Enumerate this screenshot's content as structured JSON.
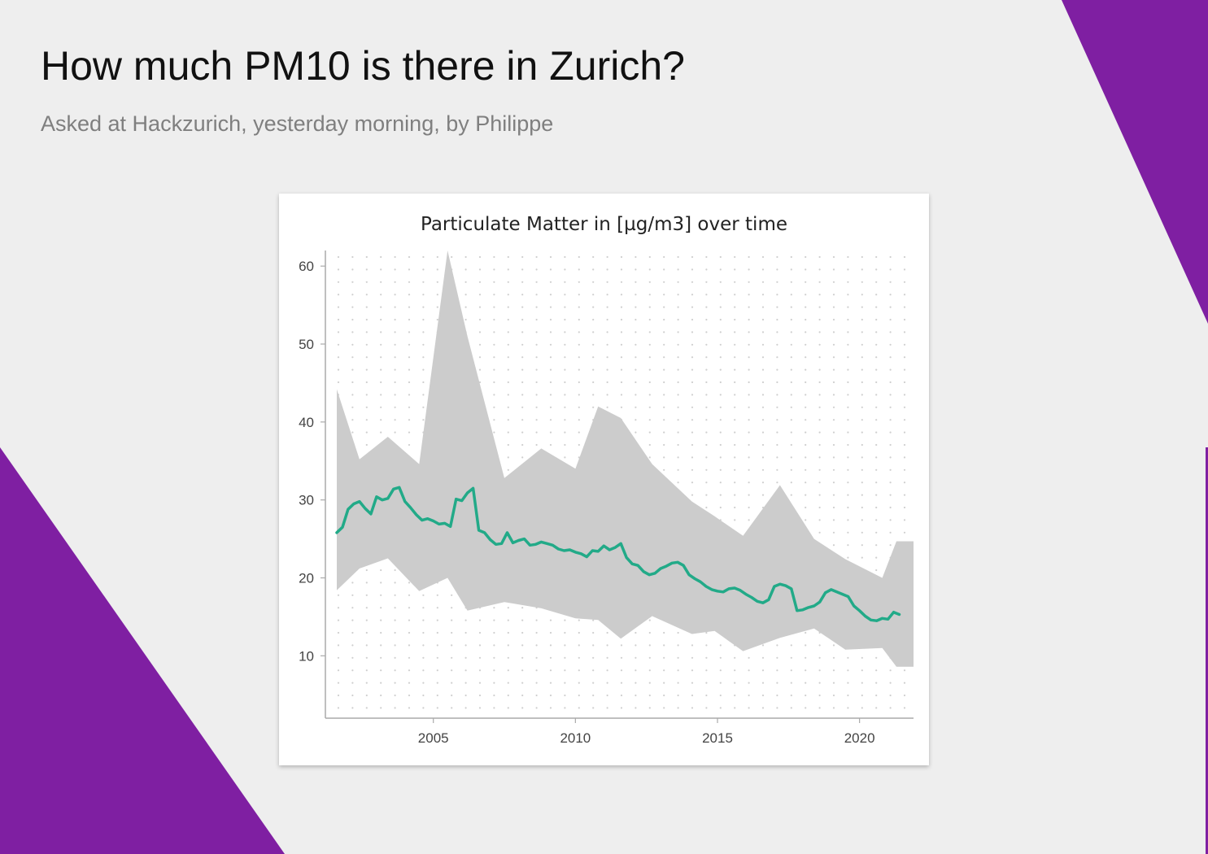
{
  "slide": {
    "title": "How much PM10 is there in Zurich?",
    "subtitle": "Asked at Hackzurich, yesterday morning, by Philippe",
    "background_color": "#eeeeee",
    "accent_color": "#7f1fa2"
  },
  "chart_data": {
    "type": "line",
    "title": "Particulate Matter in [µg/m3] over time",
    "xlabel": "",
    "ylabel": "",
    "xlim": [
      2001.2,
      2021.9
    ],
    "ylim": [
      2,
      62
    ],
    "x_ticks": [
      2005,
      2010,
      2015,
      2020
    ],
    "y_ticks": [
      10,
      20,
      30,
      40,
      50,
      60
    ],
    "grid": "dotted",
    "legend": "none",
    "line_color": "#22aa88",
    "band_color": "#cccccc",
    "series": [
      {
        "kind": "band",
        "x": [
          2001.6,
          2002.4,
          2003.4,
          2004.5,
          2005.5,
          2006.2,
          2007.5,
          2008.8,
          2010.0,
          2010.8,
          2011.6,
          2012.7,
          2014.1,
          2014.9,
          2015.9,
          2017.2,
          2018.4,
          2019.5,
          2020.8,
          2021.3,
          2021.9
        ],
        "lower": [
          18.4,
          21.2,
          22.5,
          18.3,
          20.0,
          15.8,
          16.9,
          16.1,
          14.8,
          14.6,
          12.2,
          15.1,
          12.8,
          13.2,
          10.6,
          12.3,
          13.5,
          10.8,
          11.0,
          8.6,
          8.6
        ],
        "upper": [
          44.2,
          35.2,
          38.1,
          34.6,
          62.0,
          51.0,
          32.8,
          36.6,
          34.0,
          42.0,
          40.5,
          34.6,
          29.8,
          27.9,
          25.4,
          31.9,
          25.0,
          22.4,
          20.0,
          24.7,
          24.7
        ]
      },
      {
        "kind": "line",
        "x": [
          2001.6,
          2001.8,
          2002.0,
          2002.2,
          2002.4,
          2002.6,
          2002.8,
          2003.0,
          2003.2,
          2003.4,
          2003.6,
          2003.8,
          2004.0,
          2004.2,
          2004.4,
          2004.6,
          2004.8,
          2005.0,
          2005.2,
          2005.4,
          2005.6,
          2005.8,
          2006.0,
          2006.2,
          2006.4,
          2006.6,
          2006.8,
          2007.0,
          2007.2,
          2007.4,
          2007.6,
          2007.8,
          2008.0,
          2008.2,
          2008.4,
          2008.6,
          2008.8,
          2009.0,
          2009.2,
          2009.4,
          2009.6,
          2009.8,
          2010.0,
          2010.2,
          2010.4,
          2010.6,
          2010.8,
          2011.0,
          2011.2,
          2011.4,
          2011.6,
          2011.8,
          2012.0,
          2012.2,
          2012.4,
          2012.6,
          2012.8,
          2013.0,
          2013.2,
          2013.4,
          2013.6,
          2013.8,
          2014.0,
          2014.2,
          2014.4,
          2014.6,
          2014.8,
          2015.0,
          2015.2,
          2015.4,
          2015.6,
          2015.8,
          2016.0,
          2016.2,
          2016.4,
          2016.6,
          2016.8,
          2017.0,
          2017.2,
          2017.4,
          2017.6,
          2017.8,
          2018.0,
          2018.2,
          2018.4,
          2018.6,
          2018.8,
          2019.0,
          2019.2,
          2019.4,
          2019.6,
          2019.8,
          2020.0,
          2020.2,
          2020.4,
          2020.6,
          2020.8,
          2021.0,
          2021.2,
          2021.4
        ],
        "y": [
          25.8,
          26.5,
          28.8,
          29.5,
          29.8,
          28.9,
          28.2,
          30.4,
          30.0,
          30.2,
          31.4,
          31.6,
          29.8,
          29.0,
          28.1,
          27.4,
          27.6,
          27.3,
          26.9,
          27.0,
          26.6,
          30.1,
          29.9,
          30.9,
          31.5,
          26.1,
          25.8,
          24.9,
          24.3,
          24.4,
          25.8,
          24.5,
          24.8,
          25.0,
          24.2,
          24.3,
          24.6,
          24.4,
          24.2,
          23.7,
          23.5,
          23.6,
          23.3,
          23.1,
          22.7,
          23.5,
          23.4,
          24.1,
          23.6,
          23.9,
          24.4,
          22.6,
          21.8,
          21.6,
          20.8,
          20.4,
          20.6,
          21.2,
          21.5,
          21.9,
          22.0,
          21.6,
          20.4,
          19.9,
          19.5,
          18.9,
          18.5,
          18.3,
          18.2,
          18.6,
          18.7,
          18.4,
          17.9,
          17.5,
          17.0,
          16.8,
          17.2,
          18.9,
          19.2,
          19.0,
          18.6,
          15.8,
          15.9,
          16.2,
          16.4,
          16.9,
          18.1,
          18.5,
          18.2,
          17.9,
          17.6,
          16.4,
          15.8,
          15.1,
          14.6,
          14.5,
          14.8,
          14.7,
          15.6,
          15.3
        ]
      }
    ]
  }
}
